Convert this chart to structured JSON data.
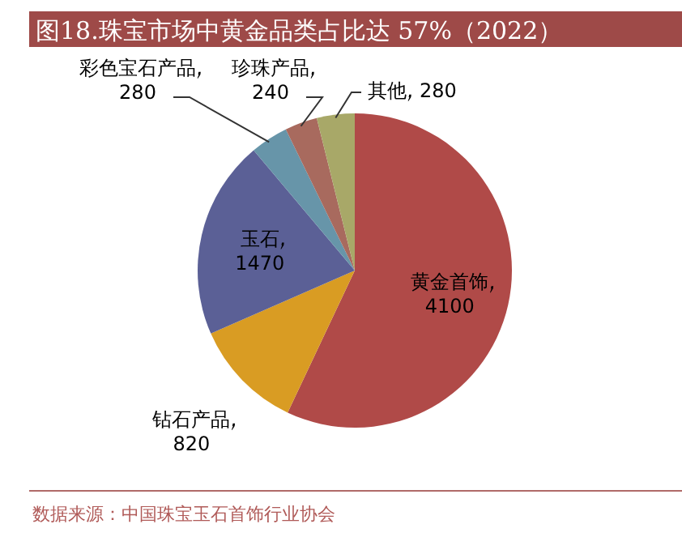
{
  "chart_data": {
    "type": "pie",
    "title": "图18.珠宝市场中黄金品类占比达 57%（2022）",
    "categories": [
      "黄金首饰",
      "钻石产品",
      "玉石",
      "彩色宝石产品",
      "珍珠产品",
      "其他"
    ],
    "values": [
      4100,
      820,
      1470,
      280,
      240,
      280
    ],
    "colors": [
      "#b04a48",
      "#d99c23",
      "#5b6096",
      "#6795a9",
      "#a86a5e",
      "#a8a868"
    ],
    "data_labels": true,
    "annotations": [
      "数据来源：中国珠宝玉石首饰行业协会"
    ]
  }
}
